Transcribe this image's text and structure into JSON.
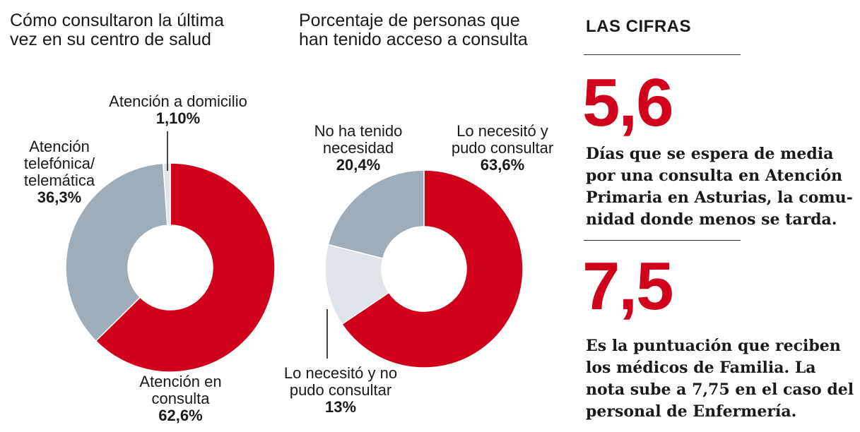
{
  "colors": {
    "red": "#d0021b",
    "gray": "#9eadb7",
    "light": "#dfe5ea"
  },
  "chart_data": [
    {
      "type": "pie",
      "title": [
        "Cómo consultaron la última",
        "vez en su centro de salud"
      ],
      "slices": [
        {
          "name": [
            "Atención en",
            "consulta"
          ],
          "value_label": "62,6%",
          "value": 62.6,
          "color": "#d0021b"
        },
        {
          "name": [
            "Atención",
            "telefónica/",
            "telemática"
          ],
          "value_label": "36,3%",
          "value": 36.3,
          "color": "#9eadb7"
        },
        {
          "name": [
            "Atención a domicilio"
          ],
          "value_label": "1,10%",
          "value": 1.1,
          "color": "#dfe5ea"
        }
      ]
    },
    {
      "type": "pie",
      "title": [
        "Porcentaje de personas que",
        "han tenido acceso a consulta"
      ],
      "slices": [
        {
          "name": [
            "Lo necesitó y",
            "pudo consultar"
          ],
          "value_label": "63,6%",
          "value": 63.6,
          "color": "#d0021b"
        },
        {
          "name": [
            "Lo necesitó y no",
            "pudo consultar"
          ],
          "value_label": "13%",
          "value": 13,
          "color": "#dfe5ea"
        },
        {
          "name": [
            "No ha tenido",
            "necesidad"
          ],
          "value_label": "20,4%",
          "value": 20.4,
          "color": "#9eadb7"
        }
      ]
    }
  ],
  "cifras": {
    "header": "LAS CIFRAS",
    "items": [
      {
        "number": "5,6",
        "text": [
          "Días que se espera de media",
          "por una consulta en Atención",
          "Primaria en Asturias, la comu-",
          "nidad donde menos se tarda."
        ]
      },
      {
        "number": "7,5",
        "text": [
          "Es la puntuación que reciben",
          "los médicos de Familia. La",
          "nota sube a 7,75 en el caso del",
          "personal de Enfermería."
        ]
      }
    ]
  }
}
